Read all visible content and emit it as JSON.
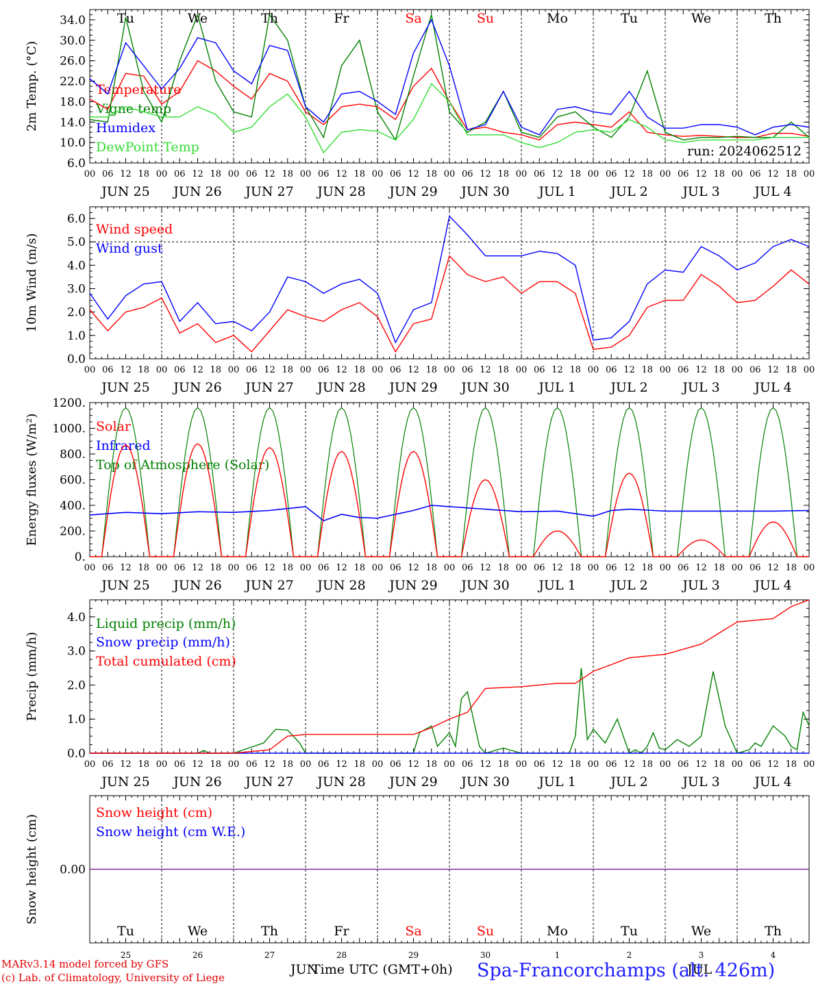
{
  "run_label": "run: 2024062512",
  "day_names": [
    "Tu",
    "We",
    "Th",
    "Fr",
    "Sa",
    "Su",
    "Mo",
    "Tu",
    "We",
    "Th"
  ],
  "weekend_days": [
    4,
    5
  ],
  "date_labels": [
    "JUN 25",
    "JUN 26",
    "JUN 27",
    "JUN 28",
    "JUN 29",
    "JUN 30",
    "JUL  1",
    "JUL  2",
    "JUL  3",
    "JUL  4"
  ],
  "day_numbers": [
    "25",
    "26",
    "27",
    "28",
    "29",
    "30",
    "1",
    "2",
    "3",
    "4"
  ],
  "hour_ticks": [
    "00",
    "06",
    "12",
    "18"
  ],
  "hour_tick_end": "00",
  "footer": {
    "credit_line1": "MARv3.14 model forced by GFS",
    "credit_line2": "(c) Lab. of Climatology, University of Liege",
    "x_title": "Time UTC (GMT+0h)",
    "month_left": "JUN",
    "month_right": "JUL",
    "station": "Spa-Francorchamps (alt. 426m)"
  },
  "colors": {
    "red": "#ff0000",
    "green": "#008000",
    "blue": "#0000ff",
    "lightgreen": "#33dd33",
    "purple": "#7a2a9a"
  },
  "chart_data": [
    {
      "id": "temperature",
      "type": "line",
      "ylabel": "2m Temp. (°C)",
      "ylim": [
        6,
        36
      ],
      "yticks": [
        "6.0",
        "10.0",
        "14.0",
        "18.0",
        "22.0",
        "26.0",
        "30.0",
        "34.0"
      ],
      "ytick_values": [
        6,
        10,
        14,
        18,
        22,
        26,
        30,
        34
      ],
      "x_hours": [
        0,
        6,
        12,
        18,
        24,
        30,
        36,
        42,
        48,
        54,
        60,
        66,
        72,
        78,
        84,
        90,
        96,
        102,
        108,
        114,
        120,
        126,
        132,
        138,
        144,
        150,
        156,
        162,
        168,
        174,
        180,
        186,
        192,
        198,
        204,
        210,
        216,
        222,
        228,
        234,
        240
      ],
      "series": [
        {
          "name": "Temperature",
          "color": "red",
          "values": [
            18.5,
            16.5,
            23.5,
            23,
            17.5,
            20,
            26,
            24,
            21,
            18.5,
            23.5,
            22,
            16,
            13.5,
            17,
            17.5,
            17,
            14.5,
            21,
            24.5,
            18,
            12.5,
            13,
            12,
            11.5,
            10.5,
            13.5,
            14,
            13.5,
            13,
            16,
            12,
            11.5,
            11.2,
            11.4,
            11.2,
            11,
            11,
            11.8,
            11.8,
            11.2
          ]
        },
        {
          "name": "Vigne temp",
          "color": "green",
          "values": [
            14.5,
            14,
            34.5,
            20,
            14,
            26,
            35,
            22,
            16,
            15,
            35,
            30,
            17,
            11,
            25,
            30,
            16,
            10.5,
            23,
            35,
            16,
            12,
            14,
            20,
            12,
            11,
            15,
            16,
            13,
            11,
            15,
            24,
            12,
            10.5,
            11,
            11,
            11.2,
            11,
            11,
            14,
            11
          ]
        },
        {
          "name": "Humidex",
          "color": "blue",
          "values": [
            22.5,
            19.5,
            29.5,
            25,
            20.5,
            24.5,
            30.5,
            29.5,
            24,
            21.5,
            29,
            28,
            17,
            14,
            19.5,
            20,
            18,
            15.5,
            27.5,
            34,
            25,
            12.5,
            13.5,
            20,
            13,
            11.5,
            16.5,
            17,
            16,
            15.5,
            20,
            15,
            12.8,
            12.8,
            13.5,
            13.5,
            13,
            11.5,
            13,
            13.5,
            13
          ]
        },
        {
          "name": "DewPoint Temp",
          "color": "lightgreen",
          "values": [
            15,
            15,
            17,
            16,
            15,
            15,
            17,
            15.5,
            12,
            13,
            17,
            19.5,
            15,
            8,
            12,
            12.5,
            12.2,
            10.5,
            14.5,
            21.5,
            18,
            11.5,
            11.5,
            11.5,
            10,
            9,
            10,
            12,
            12.5,
            12,
            14.5,
            13,
            10.5,
            10,
            10.5,
            10.5,
            10.5,
            10.5,
            11,
            11,
            11
          ]
        }
      ]
    },
    {
      "id": "wind",
      "type": "line",
      "ylabel": "10m Wind (m/s)",
      "ylim": [
        0,
        6.5
      ],
      "yticks": [
        "0.0",
        "1.0",
        "2.0",
        "3.0",
        "4.0",
        "5.0",
        "6.0"
      ],
      "ytick_values": [
        0,
        1,
        2,
        3,
        4,
        5,
        6
      ],
      "reference_line": 5,
      "x_hours": [
        0,
        6,
        12,
        18,
        24,
        30,
        36,
        42,
        48,
        54,
        60,
        66,
        72,
        78,
        84,
        90,
        96,
        102,
        108,
        114,
        120,
        126,
        132,
        138,
        144,
        150,
        156,
        162,
        168,
        174,
        180,
        186,
        192,
        198,
        204,
        210,
        216,
        222,
        228,
        234,
        240
      ],
      "series": [
        {
          "name": "Wind speed",
          "color": "red",
          "values": [
            2.1,
            1.2,
            2,
            2.2,
            2.6,
            1.1,
            1.5,
            0.7,
            1,
            0.3,
            1.2,
            2.1,
            1.8,
            1.6,
            2.1,
            2.4,
            1.8,
            0.3,
            1.5,
            1.7,
            4.4,
            3.6,
            3.3,
            3.5,
            2.8,
            3.3,
            3.3,
            2.8,
            0.4,
            0.5,
            1,
            2.2,
            2.5,
            2.5,
            3.6,
            3.1,
            2.4,
            2.5,
            3.1,
            3.8,
            3.2
          ]
        },
        {
          "name": "Wind gust",
          "color": "blue",
          "values": [
            2.8,
            1.7,
            2.7,
            3.2,
            3.3,
            1.6,
            2.4,
            1.5,
            1.6,
            1.2,
            2,
            3.5,
            3.3,
            2.8,
            3.2,
            3.4,
            2.8,
            0.7,
            2.1,
            2.4,
            6.1,
            5.3,
            4.4,
            4.4,
            4.4,
            4.6,
            4.5,
            4,
            0.8,
            0.9,
            1.6,
            3.2,
            3.8,
            3.7,
            4.8,
            4.4,
            3.8,
            4.1,
            4.8,
            5.1,
            4.8
          ]
        }
      ]
    },
    {
      "id": "energy",
      "type": "line",
      "ylabel": "Energy fluxes (W/m²)",
      "ylim": [
        0,
        1200
      ],
      "yticks": [
        "0.",
        "200.",
        "400.",
        "600.",
        "800.",
        "1000.",
        "1200."
      ],
      "ytick_values": [
        0,
        200,
        400,
        600,
        800,
        1000,
        1200
      ],
      "daily_peak_hour": 12,
      "daylight_half_width_hours": 8,
      "series": [
        {
          "name": "Solar",
          "color": "red",
          "daily_peaks": [
            870,
            880,
            850,
            820,
            820,
            600,
            200,
            650,
            130,
            270
          ]
        },
        {
          "name": "Infrared",
          "color": "blue",
          "x_hours": [
            0,
            12,
            24,
            36,
            48,
            60,
            72,
            78,
            84,
            90,
            96,
            108,
            114,
            120,
            132,
            144,
            156,
            168,
            174,
            180,
            192,
            204,
            216,
            228,
            240
          ],
          "values": [
            325,
            345,
            335,
            350,
            345,
            360,
            390,
            280,
            330,
            305,
            300,
            360,
            400,
            390,
            370,
            350,
            355,
            315,
            360,
            370,
            355,
            355,
            355,
            355,
            360
          ]
        },
        {
          "name": "Top of Atmosphere (Solar)",
          "color": "green",
          "daily_peaks": [
            1160,
            1160,
            1160,
            1160,
            1160,
            1160,
            1160,
            1160,
            1160,
            1160
          ]
        }
      ]
    },
    {
      "id": "precip",
      "type": "line",
      "ylabel": "Precip (mm/h)",
      "ylim": [
        0,
        4.5
      ],
      "yticks": [
        "0.0",
        "1.0",
        "2.0",
        "3.0",
        "4.0"
      ],
      "ytick_values": [
        0,
        1,
        2,
        3,
        4
      ],
      "series": [
        {
          "name": "Liquid precip (mm/h)",
          "color": "green",
          "x_hours": [
            0,
            36,
            38,
            40,
            48,
            58,
            62,
            66,
            70,
            72,
            108,
            110,
            114,
            116,
            118,
            120,
            122,
            124,
            126,
            130,
            132,
            138,
            144,
            156,
            160,
            162,
            164,
            166,
            168,
            172,
            176,
            180,
            182,
            184,
            186,
            188,
            190,
            192,
            196,
            200,
            204,
            208,
            212,
            216,
            218,
            220,
            222,
            224,
            228,
            232,
            234,
            236,
            238,
            240
          ],
          "values": [
            0,
            0,
            0.08,
            0,
            0,
            0.3,
            0.7,
            0.68,
            0.3,
            0,
            0,
            0.6,
            0.8,
            0.2,
            0.4,
            0.6,
            0.2,
            1.6,
            1.8,
            0.2,
            0,
            0.15,
            0,
            0,
            0,
            0.5,
            2.5,
            0.4,
            0.7,
            0.3,
            1,
            0,
            0.1,
            0,
            0.2,
            0.6,
            0.15,
            0.1,
            0.4,
            0.2,
            0.5,
            2.4,
            0.8,
            0,
            0.05,
            0.1,
            0.3,
            0.2,
            0.8,
            0.5,
            0.2,
            0.1,
            1.2,
            0.8
          ]
        },
        {
          "name": "Snow precip (mm/h)",
          "color": "blue",
          "x_hours": [
            0,
            240
          ],
          "values": [
            0,
            0
          ]
        },
        {
          "name": "Total cumulated (cm)",
          "color": "red",
          "x_hours": [
            0,
            36,
            48,
            60,
            66,
            72,
            108,
            114,
            120,
            126,
            132,
            144,
            156,
            162,
            168,
            174,
            180,
            192,
            200,
            204,
            216,
            228,
            234,
            240
          ],
          "values": [
            0,
            0,
            0,
            0.1,
            0.5,
            0.55,
            0.55,
            0.75,
            1.0,
            1.2,
            1.9,
            1.95,
            2.05,
            2.05,
            2.4,
            2.6,
            2.8,
            2.9,
            3.1,
            3.2,
            3.85,
            3.95,
            4.3,
            4.5
          ]
        }
      ]
    },
    {
      "id": "snow",
      "type": "line",
      "ylabel": "Snow height (cm)",
      "yticks": [
        "0.00"
      ],
      "ytick_values": [
        0
      ],
      "series": [
        {
          "name": "Snow height (cm)",
          "color": "red",
          "values": [
            0,
            0
          ]
        },
        {
          "name": "Snow height (cm W.E.)",
          "color": "blue",
          "values": [
            0,
            0
          ]
        }
      ]
    }
  ]
}
